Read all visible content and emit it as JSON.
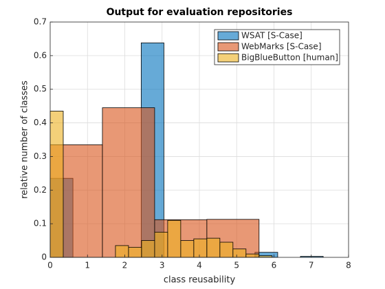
{
  "chart_data": {
    "type": "histogram",
    "title": "Output for evaluation repositories",
    "xlabel": "class reusability",
    "ylabel": "relative number of classes",
    "xlim": [
      0,
      8
    ],
    "ylim": [
      0,
      0.7
    ],
    "xticks": [
      0,
      1,
      2,
      3,
      4,
      5,
      6,
      7,
      8
    ],
    "yticks": [
      0,
      0.1,
      0.2,
      0.3,
      0.4,
      0.5,
      0.6,
      0.7
    ],
    "grid": true,
    "legend": "top-right",
    "opacity": 0.6,
    "series": [
      {
        "name": "WSAT [S-Case]",
        "color": "#0072BD",
        "bins": [
          0,
          0.61,
          1.22,
          1.83,
          2.44,
          3.05,
          3.66,
          4.27,
          4.88,
          5.49,
          6.1,
          6.71,
          7.32
        ],
        "values": [
          0.235,
          0,
          0,
          0,
          0.638,
          0,
          0,
          0,
          0,
          0.015,
          0,
          0.003
        ]
      },
      {
        "name": "WebMarks [S-Case]",
        "color": "#D95319",
        "bins": [
          0,
          1.4,
          2.8,
          4.2,
          5.6
        ],
        "values": [
          0.335,
          0.445,
          0.112,
          0.113
        ]
      },
      {
        "name": "BigBlueButton [human]",
        "color": "#EDB120",
        "bins": [
          0,
          0.35,
          0.7,
          1.05,
          1.4,
          1.75,
          2.1,
          2.45,
          2.8,
          3.15,
          3.5,
          3.85,
          4.2,
          4.55,
          4.9,
          5.25,
          5.6,
          5.95
        ],
        "values": [
          0.435,
          0,
          0,
          0,
          0,
          0.035,
          0.03,
          0.05,
          0.075,
          0.11,
          0.05,
          0.055,
          0.057,
          0.045,
          0.025,
          0.01,
          0.005
        ]
      }
    ]
  }
}
